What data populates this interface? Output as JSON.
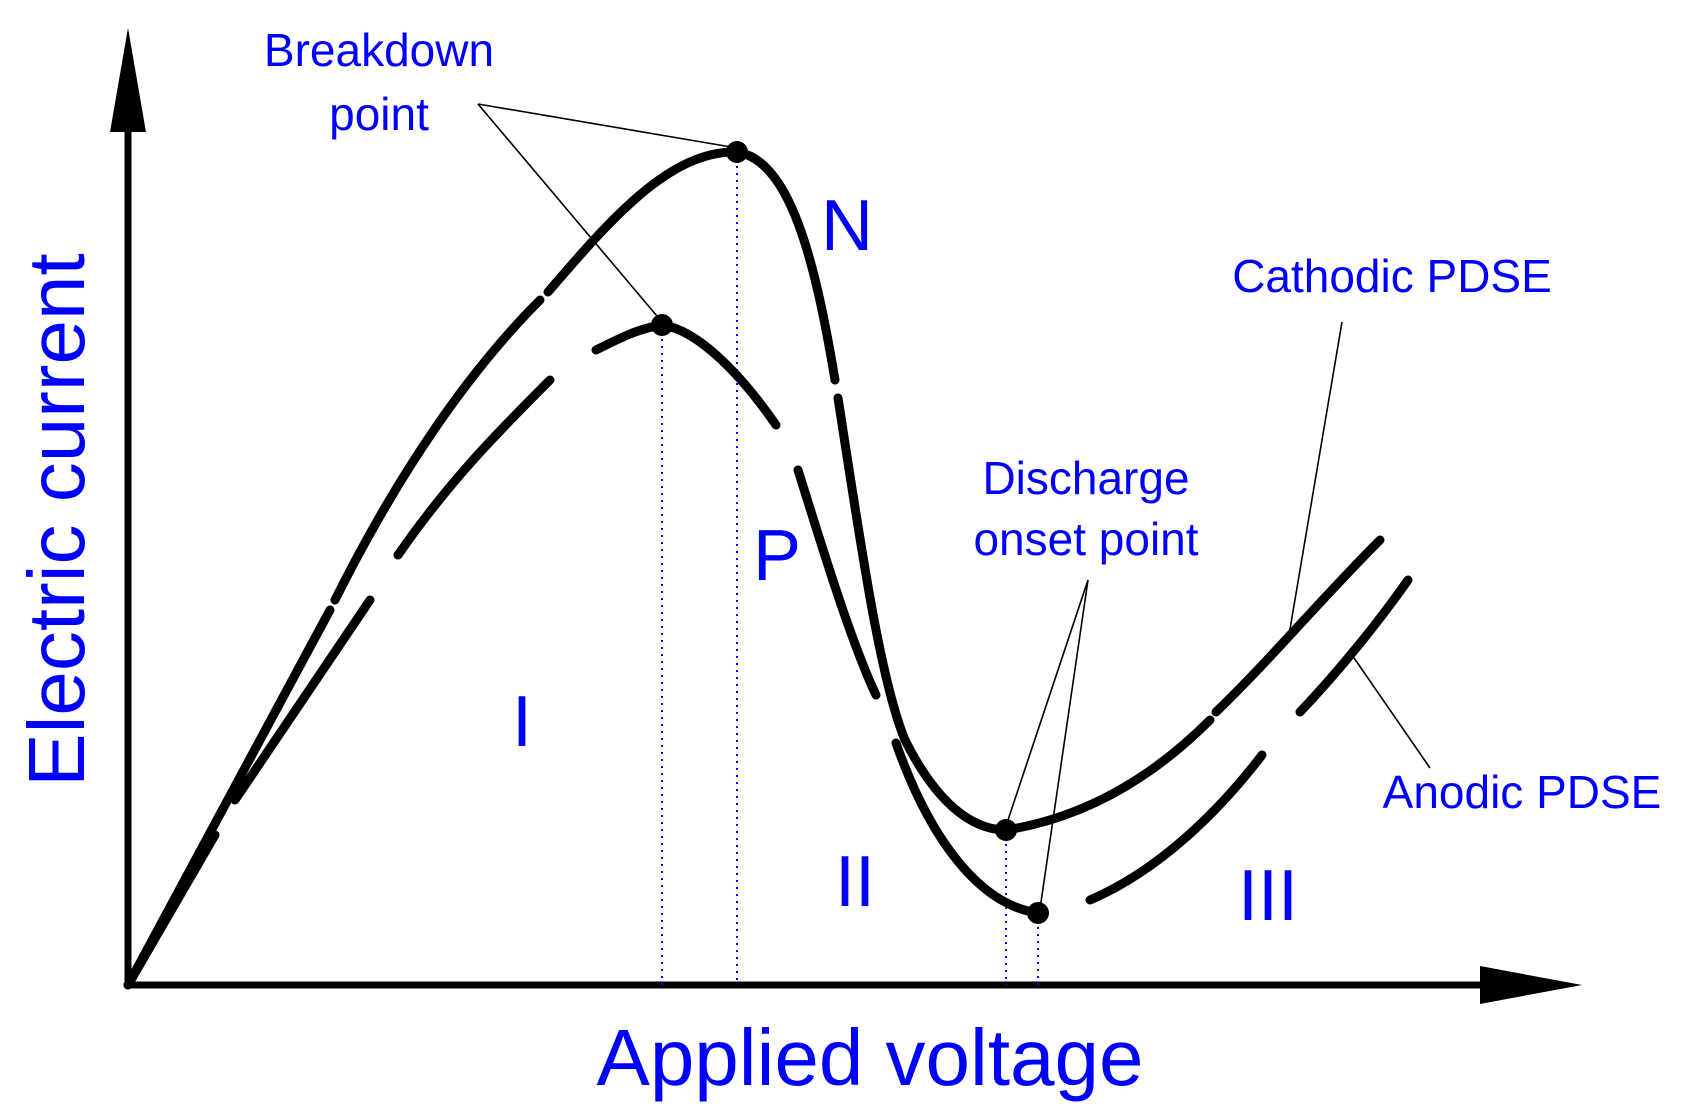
{
  "diagram": {
    "x_axis_label": "Applied voltage",
    "y_axis_label": "Electric current",
    "regions": [
      "I",
      "II",
      "III"
    ],
    "curve_letters": {
      "negative": "N",
      "positive": "P"
    },
    "annotations": {
      "breakdown_line1": "Breakdown",
      "breakdown_line2": "point",
      "discharge_line1": "Discharge",
      "discharge_line2": "onset point",
      "cathodic": "Cathodic PDSE",
      "anodic": "Anodic PDSE"
    },
    "colors": {
      "labels": "#0000ff",
      "curves": "#000000",
      "drop_lines": "#0000ff"
    }
  }
}
